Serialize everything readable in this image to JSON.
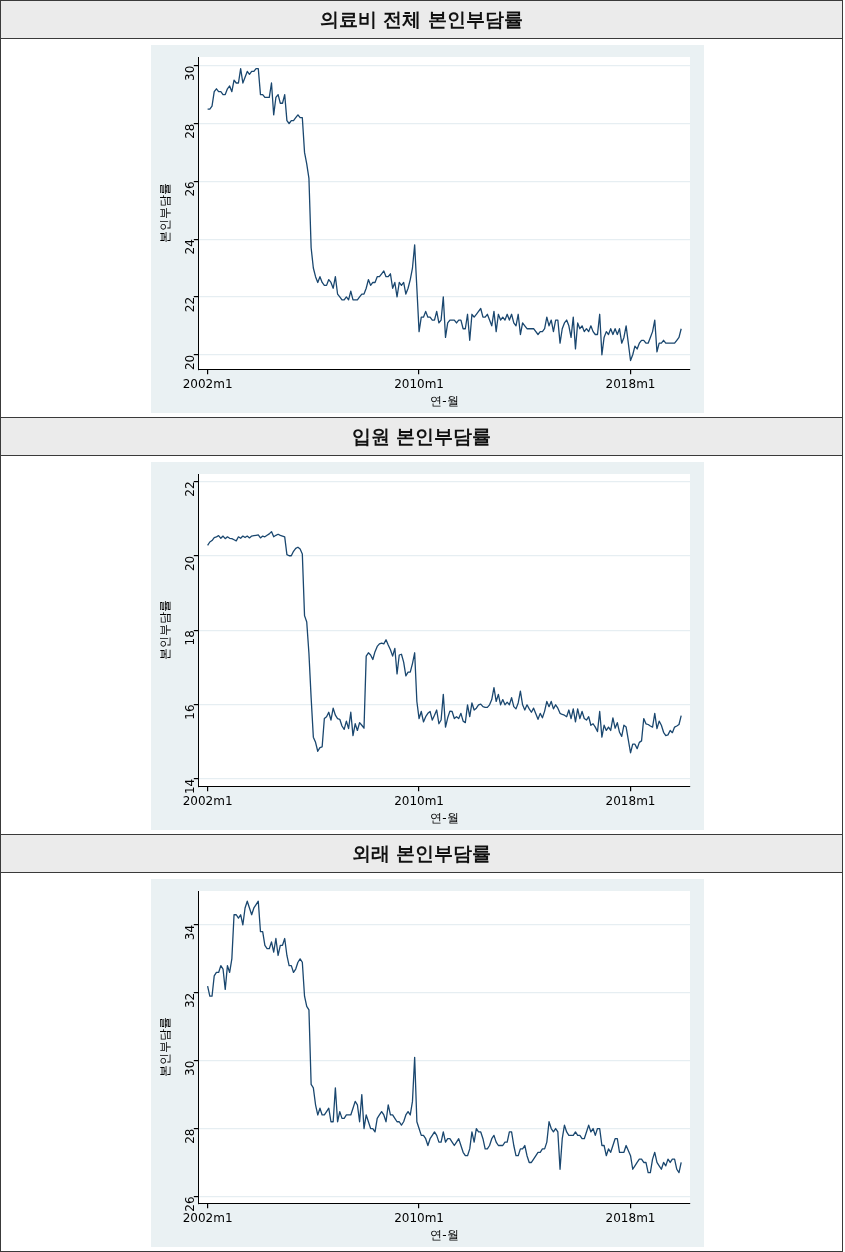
{
  "chart_data": [
    {
      "type": "line",
      "title": "의료비 전체 본인부담률",
      "xlabel": "연-월",
      "ylabel": "본인부담률",
      "color": "#1a476f",
      "line_style": "solid",
      "grid": "y",
      "xlim": [
        "2001-09",
        "2020-04"
      ],
      "xticks": [
        {
          "value": "2002-01",
          "label": "2002m1"
        },
        {
          "value": "2010-01",
          "label": "2010m1"
        },
        {
          "value": "2018-01",
          "label": "2018m1"
        }
      ],
      "ylim": [
        19.5,
        30.3
      ],
      "yticks": [
        20,
        22,
        24,
        26,
        28,
        30
      ],
      "x": [
        "2002-01",
        "2002-02",
        "2002-03",
        "2002-04",
        "2002-05",
        "2002-06",
        "2002-07",
        "2002-08",
        "2002-09",
        "2002-10",
        "2002-11",
        "2002-12",
        "2003-01",
        "2003-02",
        "2003-03",
        "2003-04",
        "2003-05",
        "2003-06",
        "2003-07",
        "2003-08",
        "2003-09",
        "2003-10",
        "2003-11",
        "2003-12",
        "2004-01",
        "2004-02",
        "2004-03",
        "2004-04",
        "2004-05",
        "2004-06",
        "2004-07",
        "2004-08",
        "2004-09",
        "2004-10",
        "2004-11",
        "2004-12",
        "2005-01",
        "2005-02",
        "2005-03",
        "2005-04",
        "2005-05",
        "2005-06",
        "2005-07",
        "2005-08",
        "2005-09",
        "2005-10",
        "2005-11",
        "2005-12",
        "2006-01",
        "2006-02",
        "2006-03",
        "2006-04",
        "2006-05",
        "2006-06",
        "2006-07",
        "2006-08",
        "2006-09",
        "2006-10",
        "2006-11",
        "2006-12",
        "2007-01",
        "2007-02",
        "2007-03",
        "2007-04",
        "2007-05",
        "2007-06",
        "2007-07",
        "2007-08",
        "2007-09",
        "2007-10",
        "2007-11",
        "2007-12",
        "2008-01",
        "2008-02",
        "2008-03",
        "2008-04",
        "2008-05",
        "2008-06",
        "2008-07",
        "2008-08",
        "2008-09",
        "2008-10",
        "2008-11",
        "2008-12",
        "2009-01",
        "2009-02",
        "2009-03",
        "2009-04",
        "2009-05",
        "2009-06",
        "2009-07",
        "2009-08",
        "2009-09",
        "2009-10",
        "2009-11",
        "2009-12",
        "2010-01",
        "2010-02",
        "2010-03",
        "2010-04",
        "2010-05",
        "2010-06",
        "2010-07",
        "2010-08",
        "2010-09",
        "2010-10",
        "2010-11",
        "2010-12",
        "2011-01",
        "2011-02",
        "2011-03",
        "2011-04",
        "2011-05",
        "2011-06",
        "2011-07",
        "2011-08",
        "2011-09",
        "2011-10",
        "2011-11",
        "2011-12",
        "2012-01",
        "2012-02",
        "2012-03",
        "2012-04",
        "2012-05",
        "2012-06",
        "2012-07",
        "2012-08",
        "2012-09",
        "2012-10",
        "2012-11",
        "2012-12",
        "2013-01",
        "2013-02",
        "2013-03",
        "2013-04",
        "2013-05",
        "2013-06",
        "2013-07",
        "2013-08",
        "2013-09",
        "2013-10",
        "2013-11",
        "2013-12",
        "2014-01",
        "2014-02",
        "2014-03",
        "2014-04",
        "2014-05",
        "2014-07",
        "2014-08",
        "2014-09",
        "2014-10",
        "2014-11",
        "2014-12",
        "2015-01",
        "2015-02",
        "2015-03",
        "2015-04",
        "2015-05",
        "2015-06",
        "2015-07",
        "2015-08",
        "2015-09",
        "2015-10",
        "2015-11",
        "2015-12",
        "2016-01",
        "2016-02",
        "2016-03",
        "2016-04",
        "2016-05",
        "2016-06",
        "2016-07",
        "2016-08",
        "2016-09",
        "2016-10",
        "2016-11",
        "2016-12",
        "2017-01",
        "2017-02",
        "2017-03",
        "2017-04",
        "2017-05",
        "2017-06",
        "2017-07",
        "2017-08",
        "2017-09",
        "2017-10",
        "2017-11",
        "2018-01",
        "2018-02",
        "2018-03",
        "2018-04",
        "2018-05",
        "2018-06",
        "2018-07",
        "2018-08",
        "2018-09",
        "2018-10",
        "2018-11",
        "2018-12",
        "2019-01",
        "2019-02",
        "2019-03",
        "2019-04",
        "2019-05",
        "2019-06",
        "2019-07",
        "2019-08",
        "2019-09",
        "2019-10",
        "2019-11",
        "2019-12"
      ],
      "values": [
        28.5,
        28.5,
        28.6,
        29.1,
        29.2,
        29.1,
        29.1,
        29.0,
        29.0,
        29.2,
        29.3,
        29.1,
        29.5,
        29.4,
        29.4,
        29.9,
        29.4,
        29.6,
        29.8,
        29.7,
        29.8,
        29.8,
        29.9,
        29.9,
        29.0,
        29.0,
        28.9,
        28.9,
        28.9,
        29.4,
        28.3,
        28.9,
        29.0,
        28.7,
        28.7,
        29.0,
        28.1,
        28.0,
        28.1,
        28.1,
        28.2,
        28.3,
        28.2,
        28.2,
        27.0,
        26.6,
        26.1,
        23.7,
        23.0,
        22.7,
        22.5,
        22.7,
        22.5,
        22.4,
        22.4,
        22.6,
        22.5,
        22.3,
        22.7,
        22.1,
        22.0,
        21.9,
        21.9,
        22.0,
        21.9,
        22.2,
        21.9,
        21.9,
        21.9,
        22.0,
        22.1,
        22.1,
        22.3,
        22.6,
        22.4,
        22.5,
        22.5,
        22.7,
        22.7,
        22.8,
        22.9,
        22.7,
        22.7,
        22.8,
        22.3,
        22.5,
        22.0,
        22.5,
        22.4,
        22.5,
        22.1,
        22.3,
        22.6,
        23.0,
        23.8,
        22.3,
        20.8,
        21.3,
        21.3,
        21.5,
        21.3,
        21.3,
        21.2,
        21.2,
        21.5,
        21.1,
        21.2,
        22.0,
        20.6,
        21.1,
        21.2,
        21.2,
        21.2,
        21.1,
        21.2,
        21.2,
        20.9,
        20.9,
        21.4,
        20.5,
        21.4,
        21.3,
        21.4,
        21.5,
        21.6,
        21.3,
        21.3,
        21.4,
        21.2,
        21.0,
        21.5,
        20.8,
        21.4,
        21.2,
        21.3,
        21.2,
        21.4,
        21.2,
        21.4,
        21.1,
        21.0,
        21.4,
        20.7,
        21.1,
        21.0,
        20.9,
        20.9,
        20.9,
        20.9,
        20.7,
        20.8,
        20.8,
        20.9,
        21.3,
        21.0,
        21.2,
        20.8,
        21.2,
        21.2,
        20.4,
        20.9,
        21.1,
        21.2,
        21.0,
        20.6,
        21.3,
        20.2,
        21.1,
        20.9,
        21.0,
        20.8,
        20.9,
        20.8,
        21.0,
        20.8,
        20.7,
        20.7,
        21.4,
        20.0,
        20.6,
        20.8,
        20.7,
        20.9,
        20.7,
        20.9,
        20.7,
        20.9,
        20.4,
        20.6,
        21.0,
        19.8,
        20.0,
        20.3,
        20.2,
        20.4,
        20.5,
        20.5,
        20.4,
        20.4,
        20.6,
        20.8,
        21.2,
        20.1,
        20.4,
        20.4,
        20.5,
        20.4,
        20.4,
        20.4,
        20.4,
        20.4,
        20.5,
        20.6,
        20.9
      ]
    },
    {
      "type": "line",
      "title": "입원 본인부담률",
      "xlabel": "연-월",
      "ylabel": "본인부담률",
      "color": "#1a476f",
      "line_style": "solid",
      "grid": "y",
      "xlim": [
        "2001-09",
        "2020-04"
      ],
      "xticks": [
        {
          "value": "2002-01",
          "label": "2002m1"
        },
        {
          "value": "2010-01",
          "label": "2010m1"
        },
        {
          "value": "2018-01",
          "label": "2018m1"
        }
      ],
      "ylim": [
        13.8,
        22.2
      ],
      "yticks": [
        14,
        16,
        18,
        20,
        22
      ],
      "x": [
        "2002-01",
        "2002-02",
        "2002-03",
        "2002-04",
        "2002-05",
        "2002-06",
        "2002-07",
        "2002-08",
        "2002-09",
        "2002-10",
        "2002-11",
        "2002-12",
        "2003-01",
        "2003-02",
        "2003-03",
        "2003-04",
        "2003-05",
        "2003-06",
        "2003-07",
        "2003-08",
        "2003-09",
        "2003-10",
        "2003-11",
        "2003-12",
        "2004-01",
        "2004-02",
        "2004-03",
        "2004-04",
        "2004-05",
        "2004-06",
        "2004-07",
        "2004-08",
        "2004-09",
        "2004-10",
        "2004-11",
        "2004-12",
        "2005-01",
        "2005-02",
        "2005-03",
        "2005-04",
        "2005-05",
        "2005-06",
        "2005-07",
        "2005-08",
        "2005-09",
        "2005-10",
        "2005-11",
        "2005-12",
        "2006-01",
        "2006-02",
        "2006-03",
        "2006-04",
        "2006-05",
        "2006-06",
        "2006-07",
        "2006-08",
        "2006-09",
        "2006-10",
        "2006-11",
        "2006-12",
        "2007-01",
        "2007-02",
        "2007-03",
        "2007-04",
        "2007-05",
        "2007-06",
        "2007-07",
        "2007-08",
        "2007-09",
        "2007-10",
        "2007-11",
        "2007-12",
        "2008-01",
        "2008-02",
        "2008-03",
        "2008-04",
        "2008-05",
        "2008-06",
        "2008-07",
        "2008-08",
        "2008-09",
        "2008-10",
        "2008-11",
        "2008-12",
        "2009-01",
        "2009-02",
        "2009-03",
        "2009-04",
        "2009-05",
        "2009-06",
        "2009-07",
        "2009-08",
        "2009-09",
        "2009-10",
        "2009-11",
        "2009-12",
        "2010-01",
        "2010-02",
        "2010-03",
        "2010-04",
        "2010-05",
        "2010-06",
        "2010-07",
        "2010-08",
        "2010-09",
        "2010-10",
        "2010-11",
        "2010-12",
        "2011-01",
        "2011-02",
        "2011-03",
        "2011-04",
        "2011-05",
        "2011-06",
        "2011-07",
        "2011-08",
        "2011-09",
        "2011-10",
        "2011-11",
        "2011-12",
        "2012-01",
        "2012-02",
        "2012-03",
        "2012-04",
        "2012-05",
        "2012-06",
        "2012-07",
        "2012-08",
        "2012-09",
        "2012-10",
        "2012-11",
        "2012-12",
        "2013-01",
        "2013-02",
        "2013-03",
        "2013-04",
        "2013-05",
        "2013-06",
        "2013-07",
        "2013-08",
        "2013-09",
        "2013-10",
        "2013-11",
        "2013-12",
        "2014-01",
        "2014-02",
        "2014-03",
        "2014-04",
        "2014-05",
        "2014-07",
        "2014-08",
        "2014-09",
        "2014-10",
        "2014-11",
        "2014-12",
        "2015-01",
        "2015-02",
        "2015-03",
        "2015-04",
        "2015-05",
        "2015-06",
        "2015-07",
        "2015-08",
        "2015-09",
        "2015-10",
        "2015-11",
        "2015-12",
        "2016-01",
        "2016-02",
        "2016-03",
        "2016-04",
        "2016-05",
        "2016-06",
        "2016-07",
        "2016-08",
        "2016-09",
        "2016-10",
        "2016-11",
        "2016-12",
        "2017-01",
        "2017-02",
        "2017-03",
        "2017-04",
        "2017-05",
        "2017-06",
        "2017-07",
        "2017-08",
        "2017-09",
        "2017-10",
        "2017-11",
        "2018-01",
        "2018-02",
        "2018-03",
        "2018-04",
        "2018-05",
        "2018-06",
        "2018-07",
        "2018-08",
        "2018-09",
        "2018-10",
        "2018-11",
        "2018-12",
        "2019-01",
        "2019-02",
        "2019-03",
        "2019-04",
        "2019-05",
        "2019-06",
        "2019-07",
        "2019-08",
        "2019-09",
        "2019-10",
        "2019-11",
        "2019-12"
      ],
      "values": [
        20.28,
        20.37,
        20.41,
        20.49,
        20.51,
        20.54,
        20.47,
        20.53,
        20.46,
        20.51,
        20.47,
        20.46,
        20.43,
        20.4,
        20.51,
        20.47,
        20.53,
        20.49,
        20.53,
        20.48,
        20.53,
        20.54,
        20.55,
        20.56,
        20.48,
        20.53,
        20.51,
        20.55,
        20.59,
        20.65,
        20.51,
        20.55,
        20.58,
        20.55,
        20.53,
        20.51,
        20.03,
        20.0,
        20.0,
        20.12,
        20.2,
        20.23,
        20.18,
        20.05,
        18.39,
        18.22,
        17.37,
        16.18,
        15.12,
        14.98,
        14.74,
        14.84,
        14.86,
        15.62,
        15.67,
        15.79,
        15.58,
        15.9,
        15.71,
        15.62,
        15.6,
        15.42,
        15.33,
        15.55,
        15.35,
        15.79,
        15.16,
        15.48,
        15.3,
        15.51,
        15.44,
        15.36,
        17.3,
        17.39,
        17.33,
        17.21,
        17.42,
        17.56,
        17.63,
        17.65,
        17.63,
        17.74,
        17.6,
        17.47,
        17.3,
        17.51,
        16.82,
        17.33,
        17.35,
        17.14,
        16.77,
        16.87,
        16.87,
        17.1,
        17.39,
        16.08,
        15.62,
        15.81,
        15.53,
        15.67,
        15.76,
        15.81,
        15.58,
        15.71,
        15.85,
        15.48,
        15.58,
        16.27,
        15.39,
        15.64,
        15.82,
        15.81,
        15.62,
        15.67,
        15.62,
        15.76,
        15.55,
        15.51,
        15.99,
        15.67,
        16.04,
        15.85,
        15.9,
        15.99,
        16.01,
        15.94,
        15.92,
        15.92,
        15.99,
        16.13,
        16.45,
        16.08,
        16.27,
        15.99,
        16.13,
        15.99,
        16.06,
        15.99,
        16.18,
        15.94,
        15.88,
        16.04,
        16.36,
        15.99,
        15.85,
        15.99,
        15.88,
        15.79,
        15.9,
        15.6,
        15.76,
        15.64,
        15.82,
        16.08,
        15.94,
        16.08,
        15.88,
        15.99,
        15.9,
        15.76,
        15.73,
        15.71,
        15.67,
        15.85,
        15.62,
        15.88,
        15.53,
        15.88,
        15.62,
        15.81,
        15.62,
        15.58,
        15.67,
        15.44,
        15.48,
        15.39,
        15.27,
        15.81,
        15.12,
        15.44,
        15.3,
        15.39,
        15.3,
        15.64,
        15.36,
        15.51,
        15.25,
        15.14,
        15.44,
        15.39,
        14.7,
        14.93,
        14.93,
        14.81,
        14.98,
        15.02,
        15.62,
        15.48,
        15.46,
        15.42,
        15.39,
        15.76,
        15.35,
        15.55,
        15.44,
        15.25,
        15.16,
        15.18,
        15.3,
        15.24,
        15.39,
        15.42,
        15.46,
        15.7
      ]
    },
    {
      "type": "line",
      "title": "외래 본인부담률",
      "xlabel": "연-월",
      "ylabel": "본인부담률",
      "color": "#1a476f",
      "line_style": "solid",
      "grid": "y",
      "xlim": [
        "2001-09",
        "2020-04"
      ],
      "xticks": [
        {
          "value": "2002-01",
          "label": "2002m1"
        },
        {
          "value": "2010-01",
          "label": "2010m1"
        },
        {
          "value": "2018-01",
          "label": "2018m1"
        }
      ],
      "ylim": [
        25.8,
        35
      ],
      "yticks": [
        26,
        28,
        30,
        32,
        34
      ],
      "x": [
        "2002-01",
        "2002-02",
        "2002-03",
        "2002-04",
        "2002-05",
        "2002-06",
        "2002-07",
        "2002-08",
        "2002-09",
        "2002-10",
        "2002-11",
        "2002-12",
        "2003-01",
        "2003-02",
        "2003-03",
        "2003-04",
        "2003-05",
        "2003-06",
        "2003-07",
        "2003-08",
        "2003-09",
        "2003-10",
        "2003-11",
        "2003-12",
        "2004-01",
        "2004-02",
        "2004-03",
        "2004-04",
        "2004-05",
        "2004-06",
        "2004-07",
        "2004-08",
        "2004-09",
        "2004-10",
        "2004-11",
        "2004-12",
        "2005-01",
        "2005-02",
        "2005-03",
        "2005-04",
        "2005-05",
        "2005-06",
        "2005-07",
        "2005-08",
        "2005-09",
        "2005-10",
        "2005-11",
        "2005-12",
        "2006-01",
        "2006-02",
        "2006-03",
        "2006-04",
        "2006-05",
        "2006-06",
        "2006-07",
        "2006-08",
        "2006-09",
        "2006-10",
        "2006-11",
        "2006-12",
        "2007-01",
        "2007-02",
        "2007-03",
        "2007-04",
        "2007-05",
        "2007-06",
        "2007-07",
        "2007-08",
        "2007-09",
        "2007-10",
        "2007-11",
        "2007-12",
        "2008-01",
        "2008-02",
        "2008-03",
        "2008-04",
        "2008-05",
        "2008-06",
        "2008-07",
        "2008-08",
        "2008-09",
        "2008-10",
        "2008-11",
        "2008-12",
        "2009-01",
        "2009-02",
        "2009-03",
        "2009-04",
        "2009-05",
        "2009-06",
        "2009-07",
        "2009-08",
        "2009-09",
        "2009-10",
        "2009-11",
        "2009-12",
        "2010-01",
        "2010-02",
        "2010-03",
        "2010-04",
        "2010-05",
        "2010-06",
        "2010-07",
        "2010-08",
        "2010-09",
        "2010-10",
        "2010-11",
        "2010-12",
        "2011-01",
        "2011-02",
        "2011-03",
        "2011-04",
        "2011-05",
        "2011-06",
        "2011-07",
        "2011-08",
        "2011-09",
        "2011-10",
        "2011-11",
        "2011-12",
        "2012-01",
        "2012-02",
        "2012-03",
        "2012-04",
        "2012-05",
        "2012-06",
        "2012-07",
        "2012-08",
        "2012-09",
        "2012-10",
        "2012-11",
        "2012-12",
        "2013-01",
        "2013-02",
        "2013-03",
        "2013-04",
        "2013-05",
        "2013-06",
        "2013-07",
        "2013-08",
        "2013-09",
        "2013-10",
        "2013-11",
        "2013-12",
        "2014-01",
        "2014-02",
        "2014-03",
        "2014-04",
        "2014-05",
        "2014-07",
        "2014-08",
        "2014-09",
        "2014-10",
        "2014-11",
        "2014-12",
        "2015-01",
        "2015-02",
        "2015-03",
        "2015-04",
        "2015-05",
        "2015-06",
        "2015-07",
        "2015-08",
        "2015-09",
        "2015-10",
        "2015-11",
        "2015-12",
        "2016-01",
        "2016-02",
        "2016-03",
        "2016-04",
        "2016-05",
        "2016-06",
        "2016-07",
        "2016-08",
        "2016-09",
        "2016-10",
        "2016-11",
        "2016-12",
        "2017-01",
        "2017-02",
        "2017-03",
        "2017-04",
        "2017-05",
        "2017-06",
        "2017-07",
        "2017-08",
        "2017-09",
        "2017-10",
        "2017-11",
        "2018-01",
        "2018-02",
        "2018-03",
        "2018-04",
        "2018-05",
        "2018-06",
        "2018-07",
        "2018-08",
        "2018-09",
        "2018-10",
        "2018-11",
        "2018-12",
        "2019-01",
        "2019-02",
        "2019-03",
        "2019-04",
        "2019-05",
        "2019-06",
        "2019-07",
        "2019-08",
        "2019-09",
        "2019-10",
        "2019-11",
        "2019-12"
      ],
      "values": [
        32.2,
        31.9,
        31.9,
        32.5,
        32.6,
        32.6,
        32.8,
        32.7,
        32.1,
        32.8,
        32.6,
        33.0,
        34.3,
        34.3,
        34.2,
        34.3,
        34.0,
        34.5,
        34.7,
        34.5,
        34.3,
        34.5,
        34.6,
        34.7,
        33.8,
        33.8,
        33.4,
        33.3,
        33.3,
        33.5,
        33.2,
        33.6,
        33.1,
        33.4,
        33.4,
        33.6,
        33.1,
        32.8,
        32.8,
        32.6,
        32.7,
        32.9,
        33.0,
        32.9,
        31.9,
        31.6,
        31.5,
        29.3,
        29.2,
        28.7,
        28.4,
        28.6,
        28.4,
        28.4,
        28.5,
        28.6,
        28.2,
        28.2,
        29.2,
        28.2,
        28.5,
        28.3,
        28.3,
        28.4,
        28.4,
        28.4,
        28.6,
        28.8,
        28.7,
        28.2,
        29.0,
        28.0,
        28.4,
        28.2,
        28.0,
        28.0,
        27.9,
        28.3,
        28.4,
        28.5,
        28.4,
        28.2,
        28.7,
        28.4,
        28.4,
        28.3,
        28.2,
        28.2,
        28.1,
        28.2,
        28.4,
        28.5,
        28.4,
        28.8,
        30.1,
        28.2,
        28.0,
        27.8,
        27.8,
        27.7,
        27.5,
        27.7,
        27.8,
        27.9,
        27.8,
        27.6,
        27.6,
        27.9,
        27.6,
        27.7,
        27.7,
        27.6,
        27.5,
        27.6,
        27.7,
        27.5,
        27.3,
        27.2,
        27.2,
        27.4,
        27.9,
        27.6,
        28.0,
        27.9,
        27.9,
        27.7,
        27.4,
        27.4,
        27.5,
        27.7,
        27.8,
        27.6,
        27.5,
        27.5,
        27.5,
        27.6,
        27.6,
        27.9,
        27.9,
        27.5,
        27.2,
        27.2,
        27.4,
        27.4,
        27.5,
        27.2,
        27.0,
        27.0,
        27.1,
        27.3,
        27.3,
        27.4,
        27.4,
        27.6,
        28.2,
        28.0,
        27.9,
        28.0,
        27.9,
        26.8,
        27.7,
        28.1,
        27.9,
        27.8,
        27.8,
        27.8,
        27.9,
        27.8,
        27.8,
        27.7,
        27.7,
        27.9,
        28.1,
        27.9,
        28.0,
        27.8,
        28.0,
        28.0,
        27.5,
        27.5,
        27.2,
        27.4,
        27.3,
        27.5,
        27.7,
        27.7,
        27.3,
        27.3,
        27.3,
        27.5,
        27.2,
        26.8,
        26.9,
        27.0,
        27.1,
        27.1,
        27.0,
        27.0,
        26.7,
        26.7,
        27.1,
        27.3,
        27.0,
        26.9,
        26.8,
        27.0,
        26.9,
        27.1,
        27.0,
        27.1,
        27.1,
        26.8,
        26.7,
        27.0
      ]
    }
  ]
}
